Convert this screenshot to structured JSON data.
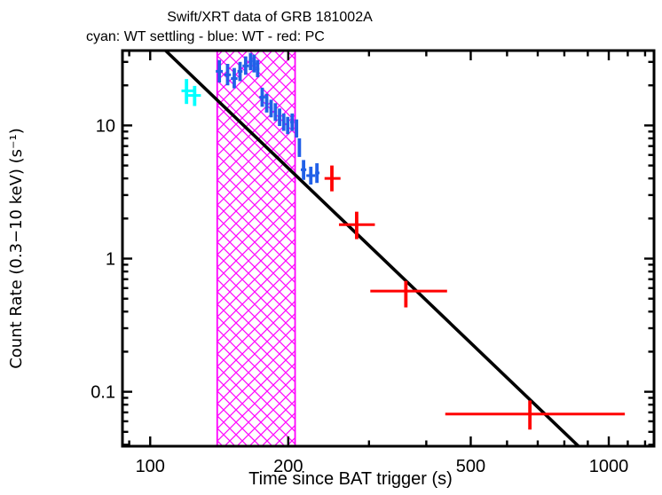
{
  "chart_data": {
    "type": "scatter",
    "title": "Swift/XRT data of GRB 181002A",
    "subtitle": "cyan: WT settling - blue: WT - red: PC",
    "xlabel": "Time since BAT trigger (s)",
    "ylabel": "Count Rate (0.3−10 keV) (s⁻¹)",
    "xscale": "log",
    "yscale": "log",
    "xlim": [
      87,
      1255
    ],
    "ylim": [
      0.039,
      36.5
    ],
    "grid": false,
    "xticks": {
      "labeled": [
        100,
        200,
        500,
        1000
      ],
      "labels": [
        "100",
        "200",
        "500",
        "1000"
      ],
      "minor": [
        90,
        300,
        400,
        600,
        700,
        800,
        900,
        1100,
        1200
      ]
    },
    "yticks": {
      "labeled": [
        10,
        1,
        0.1
      ],
      "labels": [
        "10",
        "1",
        "0.1"
      ],
      "minor": [
        30,
        20,
        9,
        8,
        7,
        6,
        5,
        4,
        3,
        2,
        0.9,
        0.8,
        0.7,
        0.6,
        0.5,
        0.4,
        0.3,
        0.2,
        0.09,
        0.08,
        0.07,
        0.06,
        0.05,
        0.04
      ]
    },
    "band": {
      "t_start": 140,
      "t_end": 207,
      "color": "#ff00ff",
      "style": "crosshatch"
    },
    "fit_line": {
      "color": "#000000",
      "points": [
        {
          "t": 108,
          "rate": 36.5
        },
        {
          "t": 859,
          "rate": 0.039
        }
      ]
    },
    "series": [
      {
        "name": "WT settling",
        "color": "#00ffff",
        "points": [
          {
            "t": 120,
            "t_lo": 117,
            "t_hi": 124,
            "rate": 18.2,
            "rate_lo": 14.5,
            "rate_hi": 22.3
          },
          {
            "t": 125,
            "t_lo": 121,
            "t_hi": 129,
            "rate": 16.8,
            "rate_lo": 14.0,
            "rate_hi": 19.8
          }
        ]
      },
      {
        "name": "WT",
        "color": "#2160e8",
        "points": [
          {
            "t": 141.5,
            "t_lo": 139,
            "t_hi": 144,
            "rate": 25.5,
            "rate_lo": 21.0,
            "rate_hi": 31.0
          },
          {
            "t": 147.5,
            "t_lo": 145,
            "t_hi": 150,
            "rate": 24.0,
            "rate_lo": 20.0,
            "rate_hi": 29.0
          },
          {
            "t": 152.5,
            "t_lo": 150,
            "t_hi": 155,
            "rate": 22.5,
            "rate_lo": 19.0,
            "rate_hi": 27.0
          },
          {
            "t": 157,
            "t_lo": 155,
            "t_hi": 159,
            "rate": 25.5,
            "rate_lo": 21.5,
            "rate_hi": 30.0
          },
          {
            "t": 161.5,
            "t_lo": 159,
            "t_hi": 164,
            "rate": 28.0,
            "rate_lo": 24.0,
            "rate_hi": 33.0
          },
          {
            "t": 165.5,
            "t_lo": 164,
            "t_hi": 167,
            "rate": 30.5,
            "rate_lo": 26.0,
            "rate_hi": 35.0
          },
          {
            "t": 168.5,
            "t_lo": 167,
            "t_hi": 170,
            "rate": 29.0,
            "rate_lo": 25.0,
            "rate_hi": 34.0
          },
          {
            "t": 171.5,
            "t_lo": 170,
            "t_hi": 173,
            "rate": 26.5,
            "rate_lo": 23.0,
            "rate_hi": 31.0
          },
          {
            "t": 175.5,
            "t_lo": 173,
            "t_hi": 178,
            "rate": 16.3,
            "rate_lo": 13.8,
            "rate_hi": 19.2
          },
          {
            "t": 179.5,
            "t_lo": 178,
            "t_hi": 181,
            "rate": 14.7,
            "rate_lo": 12.5,
            "rate_hi": 17.3
          },
          {
            "t": 183.5,
            "t_lo": 182,
            "t_hi": 185,
            "rate": 13.4,
            "rate_lo": 11.5,
            "rate_hi": 15.6
          },
          {
            "t": 187.5,
            "t_lo": 186,
            "t_hi": 189,
            "rate": 12.6,
            "rate_lo": 10.8,
            "rate_hi": 14.7
          },
          {
            "t": 191.5,
            "t_lo": 190,
            "t_hi": 193,
            "rate": 11.5,
            "rate_lo": 9.9,
            "rate_hi": 13.4
          },
          {
            "t": 195.5,
            "t_lo": 194,
            "t_hi": 197,
            "rate": 10.6,
            "rate_lo": 9.1,
            "rate_hi": 12.3
          },
          {
            "t": 199.5,
            "t_lo": 198,
            "t_hi": 201,
            "rate": 10.0,
            "rate_lo": 8.6,
            "rate_hi": 11.6
          },
          {
            "t": 204,
            "t_lo": 202,
            "t_hi": 206,
            "rate": 10.6,
            "rate_lo": 9.1,
            "rate_hi": 12.3
          },
          {
            "t": 208.5,
            "t_lo": 207,
            "t_hi": 210,
            "rate": 9.5,
            "rate_lo": 8.1,
            "rate_hi": 11.1
          },
          {
            "t": 211.5,
            "t_lo": 210,
            "t_hi": 213,
            "rate": 6.8,
            "rate_lo": 5.8,
            "rate_hi": 8.0
          },
          {
            "t": 216,
            "t_lo": 213,
            "t_hi": 219,
            "rate": 4.65,
            "rate_lo": 3.9,
            "rate_hi": 5.5
          },
          {
            "t": 224,
            "t_lo": 219,
            "t_hi": 229,
            "rate": 4.2,
            "rate_lo": 3.6,
            "rate_hi": 4.9
          },
          {
            "t": 231,
            "t_lo": 229,
            "t_hi": 234,
            "rate": 4.4,
            "rate_lo": 3.7,
            "rate_hi": 5.2
          }
        ]
      },
      {
        "name": "PC",
        "color": "#ff0000",
        "points": [
          {
            "t": 249,
            "t_lo": 240,
            "t_hi": 260,
            "rate": 4.0,
            "rate_lo": 3.2,
            "rate_hi": 5.0
          },
          {
            "t": 282,
            "t_lo": 258,
            "t_hi": 309,
            "rate": 1.8,
            "rate_lo": 1.4,
            "rate_hi": 2.25
          },
          {
            "t": 361,
            "t_lo": 302,
            "t_hi": 444,
            "rate": 0.57,
            "rate_lo": 0.43,
            "rate_hi": 0.68
          },
          {
            "t": 673,
            "t_lo": 440,
            "t_hi": 1084,
            "rate": 0.068,
            "rate_lo": 0.052,
            "rate_hi": 0.086
          }
        ]
      }
    ]
  }
}
